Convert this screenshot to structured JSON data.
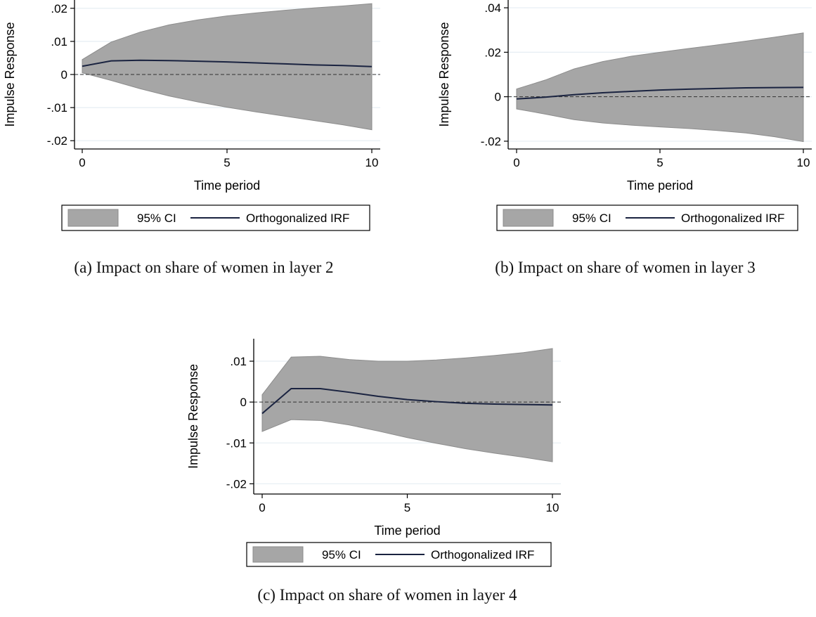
{
  "chart_data": [
    {
      "type": "area",
      "caption": "(a) Impact on share of women in layer 2",
      "xlabel": "Time period",
      "ylabel": "Impulse Response",
      "xlim": [
        0,
        10
      ],
      "ylim": [
        -0.0225,
        0.0225
      ],
      "x_ticks": [
        0,
        5,
        10
      ],
      "x_tick_labels": [
        "0",
        "5",
        "10"
      ],
      "y_ticks": [
        -0.02,
        -0.01,
        0,
        0.01,
        0.02
      ],
      "y_tick_labels": [
        "-.02",
        "-.01",
        "0",
        ".01",
        ".02"
      ],
      "x": [
        0,
        1,
        2,
        3,
        4,
        5,
        6,
        7,
        8,
        9,
        10
      ],
      "series": [
        {
          "name": "95% CI",
          "kind": "band",
          "upper": [
            0.0045,
            0.0098,
            0.0128,
            0.015,
            0.0165,
            0.0177,
            0.0186,
            0.0194,
            0.0201,
            0.0207,
            0.0214
          ],
          "lower": [
            0.0005,
            -0.0018,
            -0.0043,
            -0.0065,
            -0.0083,
            -0.0099,
            -0.0113,
            -0.0126,
            -0.0139,
            -0.0152,
            -0.0167
          ]
        },
        {
          "name": "Orthogonalized IRF",
          "kind": "line",
          "values": [
            0.0025,
            0.0041,
            0.0043,
            0.0042,
            0.004,
            0.0038,
            0.0035,
            0.0032,
            0.0029,
            0.0027,
            0.0024
          ]
        }
      ],
      "reference_line": 0,
      "grid": true,
      "legend_position": "bottom"
    },
    {
      "type": "area",
      "caption": "(b) Impact on share of women in layer 3",
      "xlabel": "Time period",
      "ylabel": "Impulse Response",
      "xlim": [
        0,
        10
      ],
      "ylim": [
        -0.0235,
        0.0435
      ],
      "x_ticks": [
        0,
        5,
        10
      ],
      "x_tick_labels": [
        "0",
        "5",
        "10"
      ],
      "y_ticks": [
        -0.02,
        0,
        0.02,
        0.04
      ],
      "y_tick_labels": [
        "-.02",
        "0",
        ".02",
        ".04"
      ],
      "x": [
        0,
        1,
        2,
        3,
        4,
        5,
        6,
        7,
        8,
        9,
        10
      ],
      "series": [
        {
          "name": "95% CI",
          "kind": "band",
          "upper": [
            0.0035,
            0.0075,
            0.0125,
            0.0158,
            0.0182,
            0.02,
            0.0217,
            0.0233,
            0.025,
            0.0268,
            0.0287
          ],
          "lower": [
            -0.0055,
            -0.0078,
            -0.0103,
            -0.0118,
            -0.0128,
            -0.0136,
            -0.0143,
            -0.0152,
            -0.0163,
            -0.018,
            -0.0202
          ]
        },
        {
          "name": "Orthogonalized IRF",
          "kind": "line",
          "values": [
            -0.001,
            -0.0002,
            0.0009,
            0.0018,
            0.0024,
            0.003,
            0.0034,
            0.0037,
            0.004,
            0.0041,
            0.0042
          ]
        }
      ],
      "reference_line": 0,
      "grid": true,
      "legend_position": "bottom"
    },
    {
      "type": "area",
      "caption": "(c) Impact on share of women in layer 4",
      "xlabel": "Time period",
      "ylabel": "Impulse Response",
      "xlim": [
        0,
        10
      ],
      "ylim": [
        -0.0225,
        0.0155
      ],
      "x_ticks": [
        0,
        5,
        10
      ],
      "x_tick_labels": [
        "0",
        "5",
        "10"
      ],
      "y_ticks": [
        -0.02,
        -0.01,
        0,
        0.01
      ],
      "y_tick_labels": [
        "-.02",
        "-.01",
        "0",
        ".01"
      ],
      "x": [
        0,
        1,
        2,
        3,
        4,
        5,
        6,
        7,
        8,
        9,
        10
      ],
      "series": [
        {
          "name": "95% CI",
          "kind": "band",
          "upper": [
            0.0018,
            0.011,
            0.0112,
            0.0104,
            0.01,
            0.01,
            0.0103,
            0.0108,
            0.0114,
            0.0121,
            0.0131
          ],
          "lower": [
            -0.0072,
            -0.0043,
            -0.0045,
            -0.0056,
            -0.0071,
            -0.0087,
            -0.0101,
            -0.0114,
            -0.0125,
            -0.0135,
            -0.0146
          ]
        },
        {
          "name": "Orthogonalized IRF",
          "kind": "line",
          "values": [
            -0.0028,
            0.0033,
            0.0033,
            0.0024,
            0.0014,
            0.0006,
            0.0001,
            -0.0003,
            -0.0005,
            -0.0006,
            -0.0007
          ]
        }
      ],
      "reference_line": 0,
      "grid": true,
      "legend_position": "bottom"
    }
  ],
  "colors": {
    "ci_fill": "#a6a6a6",
    "ci_edge": "#8c8c8c",
    "irf_line": "#1a2340",
    "grid": "#e6eef3",
    "axis": "#000000",
    "zero_line": "#333333"
  }
}
